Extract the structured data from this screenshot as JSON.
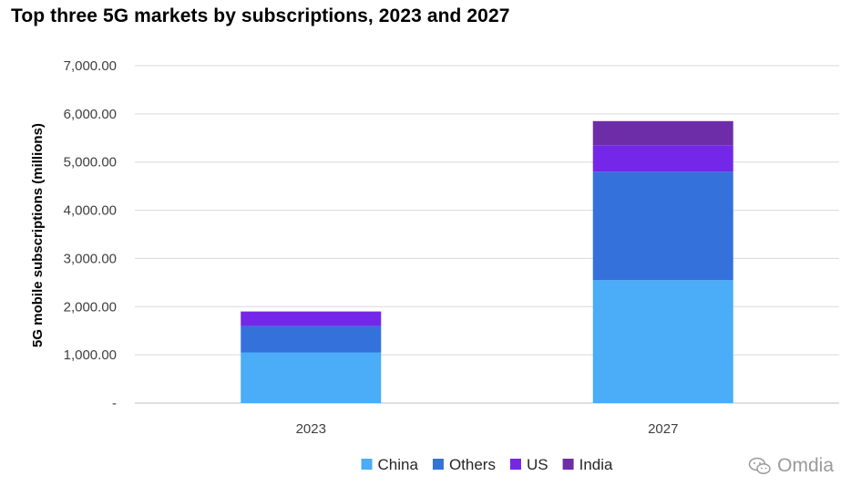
{
  "chart_data": {
    "type": "bar",
    "stacked": true,
    "title": "Top three 5G markets by subscriptions, 2023 and 2027",
    "xlabel": "",
    "ylabel": "5G mobile subscriptions (millions)",
    "categories": [
      "2023",
      "2027"
    ],
    "series": [
      {
        "name": "China",
        "color": "#4BACF7",
        "values": [
          1050,
          2550
        ]
      },
      {
        "name": "Others",
        "color": "#3571DB",
        "values": [
          550,
          2250
        ]
      },
      {
        "name": "US",
        "color": "#7427E8",
        "values": [
          300,
          550
        ]
      },
      {
        "name": "India",
        "color": "#6E2DA8",
        "values": [
          0,
          500
        ]
      }
    ],
    "ylim": [
      0,
      7000
    ],
    "yticks": [
      0,
      1000,
      2000,
      3000,
      4000,
      5000,
      6000,
      7000
    ],
    "ytick_labels": [
      "-",
      "1,000.00",
      "2,000.00",
      "3,000.00",
      "4,000.00",
      "5,000.00",
      "6,000.00",
      "7,000.00"
    ],
    "grid": true,
    "legend": "bottom"
  },
  "watermark": "Omdia"
}
